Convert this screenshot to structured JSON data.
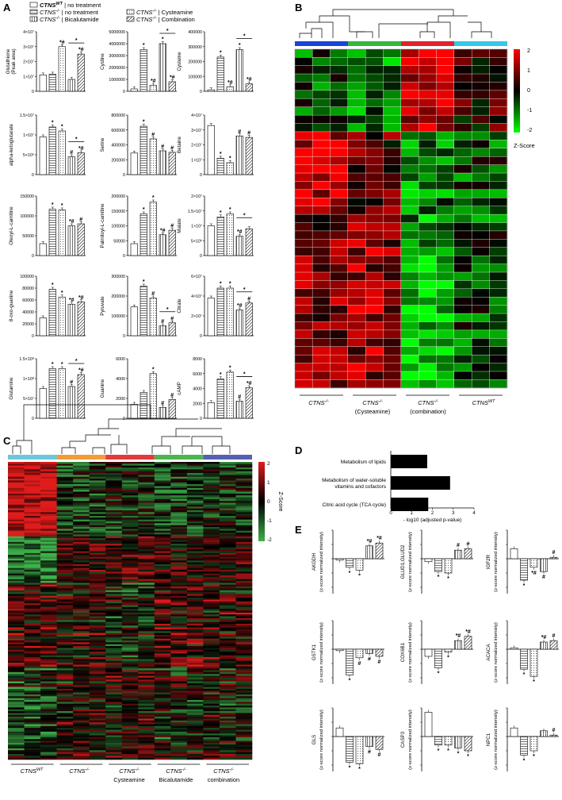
{
  "panels": {
    "a": "A",
    "b": "B",
    "c": "C",
    "d": "D",
    "e": "E"
  },
  "legend_a": [
    {
      "pre": "CTNS",
      "sup": "WT",
      "post": " | no treatment",
      "pattern": "white"
    },
    {
      "pre": "CTNS",
      "sup": "-/-",
      "post": " | no treatment",
      "pattern": "hlines"
    },
    {
      "pre": "CTNS",
      "sup": "-/-",
      "post": " | Bicalutamide",
      "pattern": "vlines"
    },
    {
      "pre": "CTNS",
      "sup": "-/-",
      "post": " | Cysteamine",
      "pattern": "dots"
    },
    {
      "pre": "CTNS",
      "sup": "-/-",
      "post": " | Combination",
      "pattern": "diag"
    }
  ],
  "chart_data": [
    {
      "panel": "A",
      "type": "bar",
      "group_order": [
        "CTNS WT | no treatment",
        "CTNS -/- | no treatment",
        "CTNS -/- | Cysteamine",
        "CTNS -/- | Bicalutamide",
        "CTNS -/- | Combination"
      ],
      "charts": [
        {
          "ylabel": "Glutathione\n(Peak area)",
          "yticks": [
            "0",
            "1×10⁷",
            "2×10⁷",
            "3×10⁷",
            "4×10⁷"
          ],
          "ymax": 4,
          "values": [
            1.1,
            1.15,
            3.0,
            0.8,
            2.5
          ],
          "marks": [
            "",
            "",
            "*#",
            "",
            "*#"
          ],
          "bracket": true
        },
        {
          "ylabel": "Cystine",
          "yticks": [
            "0",
            "1000000",
            "2000000",
            "3000000",
            "4000000",
            "5000000"
          ],
          "ymax": 5,
          "values": [
            0.2,
            3.5,
            0.5,
            4.0,
            0.8
          ],
          "marks": [
            "",
            "*",
            "*#",
            "*",
            "*#"
          ],
          "bracket": true
        },
        {
          "ylabel": "Cysteine",
          "yticks": [
            "0",
            "100000",
            "200000",
            "300000",
            "400000"
          ],
          "ymax": 4,
          "values": [
            0.1,
            2.3,
            0.3,
            2.8,
            0.5
          ],
          "marks": [
            "",
            "*",
            "*#",
            "*",
            "*#"
          ],
          "bracket": true
        },
        {
          "ylabel": "alpha-ketoglutarate",
          "yticks": [
            "0",
            "5×10⁶",
            "1×10⁷",
            "1.5×10⁷"
          ],
          "ymax": 1.5,
          "values": [
            0.95,
            1.2,
            1.1,
            0.45,
            0.55
          ],
          "marks": [
            "",
            "*",
            "*",
            "#",
            "*#"
          ],
          "bracket": true
        },
        {
          "ylabel": "Serine",
          "yticks": [
            "0",
            "200000",
            "400000",
            "600000",
            "800000"
          ],
          "ymax": 8,
          "values": [
            2.9,
            6.5,
            4.8,
            3.2,
            3.0
          ],
          "marks": [
            "",
            "*",
            "#",
            "#",
            "#"
          ],
          "bracket": false
        },
        {
          "ylabel": "Betaine",
          "yticks": [
            "0",
            "1×10⁷",
            "2×10⁷",
            "3×10⁷",
            "4×10⁷"
          ],
          "ymax": 4,
          "values": [
            3.3,
            1.1,
            0.8,
            2.6,
            2.5
          ],
          "marks": [
            "",
            "*",
            "*",
            "#",
            "#"
          ],
          "bracket": false
        },
        {
          "ylabel": "Oleoyl-L-carnitine",
          "yticks": [
            "0",
            "50000",
            "100000",
            "150000"
          ],
          "ymax": 15,
          "values": [
            3.0,
            11.7,
            11.5,
            7.5,
            8.0
          ],
          "marks": [
            "",
            "*",
            "*",
            "*#",
            "#"
          ],
          "bracket": false
        },
        {
          "ylabel": "Palmitoyl-L-carnitine",
          "yticks": [
            "0",
            "50000",
            "100000",
            "150000",
            "200000"
          ],
          "ymax": 20,
          "values": [
            4.0,
            14.0,
            18.0,
            7.0,
            8.5
          ],
          "marks": [
            "",
            "*",
            "*",
            "*#",
            "#"
          ],
          "bracket": false
        },
        {
          "ylabel": "Malate",
          "yticks": [
            "0",
            "5×10⁶",
            "1×10⁷",
            "1.5×10⁷",
            "2×10⁷"
          ],
          "ymax": 2,
          "values": [
            1.0,
            1.3,
            1.4,
            0.65,
            0.9
          ],
          "marks": [
            "",
            "*",
            "*",
            "*#",
            ""
          ],
          "bracket": true
        },
        {
          "ylabel": "8-oxo-guanine",
          "yticks": [
            "0",
            "20000",
            "40000",
            "60000",
            "80000",
            "100000"
          ],
          "ymax": 10,
          "values": [
            3.0,
            7.8,
            6.5,
            5.3,
            5.7
          ],
          "marks": [
            "",
            "*",
            "*",
            "*#",
            "*#"
          ],
          "bracket": false
        },
        {
          "ylabel": "Pyruvate",
          "yticks": [
            "0",
            "100000",
            "200000",
            "300000"
          ],
          "ymax": 3,
          "values": [
            1.45,
            2.5,
            1.9,
            0.5,
            0.65
          ],
          "marks": [
            "",
            "*",
            "#",
            "#",
            "#"
          ],
          "bracket": true
        },
        {
          "ylabel": "Citrate",
          "yticks": [
            "0",
            "2×10⁷",
            "4×10⁷",
            "6×10⁷"
          ],
          "ymax": 6,
          "values": [
            3.8,
            4.8,
            4.8,
            2.6,
            3.3
          ],
          "marks": [
            "",
            "*",
            "*",
            "*#",
            "#"
          ],
          "bracket": true
        },
        {
          "ylabel": "Glutamine",
          "yticks": [
            "0",
            "5×10⁷",
            "1×10⁸",
            "1.5×10⁸"
          ],
          "ymax": 1.5,
          "values": [
            0.75,
            1.25,
            1.25,
            0.8,
            1.1
          ],
          "marks": [
            "",
            "*",
            "*",
            "#",
            "*#"
          ],
          "bracket": true
        },
        {
          "ylabel": "Guanine",
          "yticks": [
            "0",
            "2000",
            "4000",
            "6000"
          ],
          "ymax": 6,
          "values": [
            1.4,
            2.6,
            4.5,
            1.1,
            1.9
          ],
          "marks": [
            "",
            "",
            "*",
            "#",
            "#"
          ],
          "bracket": false
        },
        {
          "ylabel": "cAMP",
          "yticks": [
            "0",
            "2000",
            "4000",
            "6000",
            "8000"
          ],
          "ymax": 8,
          "values": [
            2.1,
            5.3,
            6.2,
            2.3,
            4.1
          ],
          "marks": [
            "",
            "*",
            "*",
            "#",
            "*#"
          ],
          "bracket": true
        }
      ]
    },
    {
      "panel": "D",
      "type": "bar",
      "orientation": "horizontal",
      "categories": [
        "Metabolism of lipids",
        "Metabolism of water-soluble vitamins and cofactors",
        "Citric acid cycle (TCA cycle)"
      ],
      "values": [
        1.75,
        2.85,
        1.8
      ],
      "xlabel": "- log10 (adjusted p-value)",
      "xticks": [
        "0",
        "1",
        "2",
        "3",
        "4"
      ],
      "xlim": [
        0,
        4
      ]
    },
    {
      "panel": "E",
      "type": "bar",
      "charts": [
        {
          "title": "AKGDH",
          "ylabel": "(z-score normalized intensity)",
          "values": [
            -0.05,
            -0.3,
            -0.4,
            0.45,
            0.55
          ],
          "marks": [
            "",
            "*",
            "*",
            "*#",
            "*#"
          ]
        },
        {
          "title": "GLUD1;GLUD2",
          "ylabel": "(z-score normalized intensity)",
          "values": [
            -0.1,
            -0.45,
            -0.5,
            0.3,
            0.35
          ],
          "marks": [
            "",
            "*",
            "*",
            "#",
            "#"
          ]
        },
        {
          "title": "IGF2R",
          "ylabel": "(z-score normalized intensity)",
          "values": [
            0.35,
            -0.75,
            -0.3,
            -0.45,
            0.05
          ],
          "marks": [
            "",
            "*",
            "*#",
            "#",
            "#"
          ]
        },
        {
          "title": "GSTK1",
          "ylabel": "(z-score normalized intensity)",
          "values": [
            -0.05,
            -0.9,
            -0.3,
            -0.15,
            -0.25
          ],
          "marks": [
            "",
            "*",
            "#",
            "#",
            "#"
          ]
        },
        {
          "title": "COX6B1",
          "ylabel": "(z-score normalized intensity)",
          "values": [
            -0.25,
            -0.65,
            -0.1,
            0.3,
            0.45
          ],
          "marks": [
            "",
            "*",
            "*",
            "*#",
            "*#"
          ]
        },
        {
          "title": "ACACA",
          "ylabel": "(z-score normalized intensity)",
          "values": [
            0.05,
            -0.7,
            -0.95,
            0.25,
            0.3
          ],
          "marks": [
            "",
            "*",
            "*",
            "*#",
            "#"
          ]
        },
        {
          "title": "GLS",
          "ylabel": "(z-score normalized intensity)",
          "values": [
            0.3,
            -0.9,
            -0.95,
            -0.35,
            -0.45
          ],
          "marks": [
            "",
            "*",
            "*",
            "#",
            "#"
          ]
        },
        {
          "title": "CASP3",
          "ylabel": "(z-score normalized intensity)",
          "values": [
            0.85,
            -0.3,
            -0.3,
            -0.4,
            -0.5
          ],
          "marks": [
            "",
            "*",
            "*",
            "*",
            "*"
          ]
        },
        {
          "title": "NPC1",
          "ylabel": "(z-score normalized intensity)",
          "values": [
            0.3,
            -0.65,
            -0.5,
            0.2,
            0.05
          ],
          "marks": [
            "",
            "*",
            "*",
            "",
            "#"
          ]
        }
      ]
    },
    {
      "panel": "B",
      "type": "heatmap",
      "legend_title": "Z-Score",
      "scale": [
        "2",
        "1",
        "0",
        "-1",
        "-2"
      ],
      "groups": [
        {
          "pre": "CTNS",
          "sup": "-/-",
          "line2": ""
        },
        {
          "pre": "CTNS",
          "sup": "-/-",
          "line2": "(Cysteamine)"
        },
        {
          "pre": "CTNS",
          "sup": "-/-",
          "line2": "(combination)"
        },
        {
          "pre": "CTNS",
          "sup": "WT",
          "line2": ""
        }
      ],
      "group_colors": [
        "#1a44d6",
        "#36b83c",
        "#e0222d",
        "#35c8e8"
      ]
    },
    {
      "panel": "C",
      "type": "heatmap",
      "legend_title": "Z-Score",
      "scale": [
        "2",
        "1",
        "0",
        "-1",
        "-2"
      ],
      "groups": [
        {
          "pre": "CTNS",
          "sup": "WT",
          "line2": ""
        },
        {
          "pre": "CTNS",
          "sup": "-/-",
          "line2": ""
        },
        {
          "pre": "CTNS",
          "sup": "-/-",
          "line2": "Cysteamine"
        },
        {
          "pre": "CTNS",
          "sup": "-/-",
          "line2": "Bicalutamide"
        },
        {
          "pre": "CTNS",
          "sup": "-/-",
          "line2": "combination"
        }
      ],
      "group_colors": [
        "#6ec6dc",
        "#f29b3b",
        "#e13b3b",
        "#4db54f",
        "#5561b0"
      ]
    }
  ]
}
